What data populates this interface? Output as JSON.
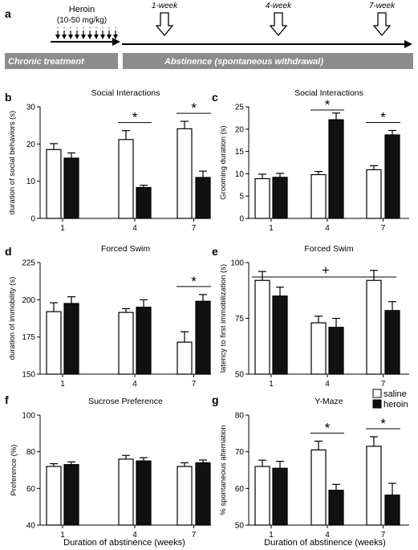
{
  "colors": {
    "saline": "#ffffff",
    "heroin": "#111111",
    "bar_banner": "#8c8c8c"
  },
  "timeline": {
    "panel_label": "a",
    "heroin_label": "Heroin",
    "dose_label": "(10-50 mg/kg)",
    "markers": [
      "1-week",
      "4-week",
      "7-week"
    ],
    "chronic_label": "Chronic treatment",
    "abstinence_label": "Abstinence (spontaneous withdrawal)"
  },
  "legend": {
    "saline": "saline",
    "heroin": "heroin"
  },
  "xlabel": "Duration of abstinence (weeks)",
  "chart_data": [
    {
      "panel": "b",
      "type": "bar",
      "title": "Social Interactions",
      "ylabel": "duration of social behaviors (s)",
      "ylim": [
        0,
        30
      ],
      "yticks": [
        0,
        10,
        20,
        30
      ],
      "categories": [
        "1",
        "4",
        "7"
      ],
      "series": [
        {
          "name": "saline",
          "values": [
            18.5,
            21.2,
            24.1
          ],
          "errors": [
            1.6,
            2.4,
            2.0
          ]
        },
        {
          "name": "heroin",
          "values": [
            16.2,
            8.3,
            11.0
          ],
          "errors": [
            1.4,
            0.6,
            1.7
          ]
        }
      ],
      "significance": [
        {
          "category": "4",
          "label": "*"
        },
        {
          "category": "7",
          "label": "*"
        }
      ]
    },
    {
      "panel": "c",
      "type": "bar",
      "title": "Social Interactions",
      "ylabel": "Grooming duration (s)",
      "ylim": [
        0,
        25
      ],
      "yticks": [
        0,
        5,
        10,
        15,
        20,
        25
      ],
      "categories": [
        "1",
        "4",
        "7"
      ],
      "series": [
        {
          "name": "saline",
          "values": [
            8.9,
            9.8,
            10.9
          ],
          "errors": [
            1.0,
            0.7,
            0.9
          ]
        },
        {
          "name": "heroin",
          "values": [
            9.2,
            22.1,
            18.7
          ],
          "errors": [
            0.9,
            1.5,
            1.0
          ]
        }
      ],
      "significance": [
        {
          "category": "4",
          "label": "*"
        },
        {
          "category": "7",
          "label": "*"
        }
      ]
    },
    {
      "panel": "d",
      "type": "bar",
      "title": "Forced Swim",
      "ylabel": "duration of immobility (s)",
      "ylim": [
        150,
        225
      ],
      "yticks": [
        150,
        175,
        200,
        225
      ],
      "categories": [
        "1",
        "4",
        "7"
      ],
      "series": [
        {
          "name": "saline",
          "values": [
            192,
            191.5,
            171.5
          ],
          "errors": [
            6,
            2.5,
            7
          ]
        },
        {
          "name": "heroin",
          "values": [
            197.5,
            195,
            199
          ],
          "errors": [
            4.5,
            5,
            4.5
          ]
        }
      ],
      "significance": [
        {
          "category": "7",
          "label": "*"
        }
      ]
    },
    {
      "panel": "e",
      "type": "bar",
      "title": "Forced Swim",
      "ylabel": "latency to first immobilization (s)",
      "ylim": [
        50,
        100
      ],
      "yticks": [
        50,
        75,
        100
      ],
      "categories": [
        "1",
        "4",
        "7"
      ],
      "series": [
        {
          "name": "saline",
          "values": [
            92,
            73,
            92
          ],
          "errors": [
            4,
            3,
            4.5
          ]
        },
        {
          "name": "heroin",
          "values": [
            85,
            71,
            78.5
          ],
          "errors": [
            4,
            4,
            4
          ]
        }
      ],
      "significance": [
        {
          "category": "all",
          "label": "+"
        }
      ]
    },
    {
      "panel": "f",
      "type": "bar",
      "title": "Sucrose Preference",
      "ylabel": "Preference (%)",
      "ylim": [
        40,
        100
      ],
      "yticks": [
        40,
        60,
        80,
        100
      ],
      "categories": [
        "1",
        "4",
        "7"
      ],
      "series": [
        {
          "name": "saline",
          "values": [
            72,
            76,
            72
          ],
          "errors": [
            1.5,
            2,
            2
          ]
        },
        {
          "name": "heroin",
          "values": [
            73,
            75,
            74
          ],
          "errors": [
            1.5,
            1.8,
            1.5
          ]
        }
      ],
      "significance": []
    },
    {
      "panel": "g",
      "type": "bar",
      "title": "Y-Maze",
      "ylabel": "% spontaneous alternation",
      "ylim": [
        50,
        80
      ],
      "yticks": [
        50,
        60,
        70,
        80
      ],
      "categories": [
        "1",
        "4",
        "7"
      ],
      "series": [
        {
          "name": "saline",
          "values": [
            66,
            70.5,
            71.5
          ],
          "errors": [
            1.7,
            2.4,
            2.6
          ]
        },
        {
          "name": "heroin",
          "values": [
            65.5,
            59.5,
            58.2
          ],
          "errors": [
            1.9,
            1.6,
            3.2
          ]
        }
      ],
      "significance": [
        {
          "category": "4",
          "label": "*"
        },
        {
          "category": "7",
          "label": "*"
        }
      ]
    }
  ]
}
